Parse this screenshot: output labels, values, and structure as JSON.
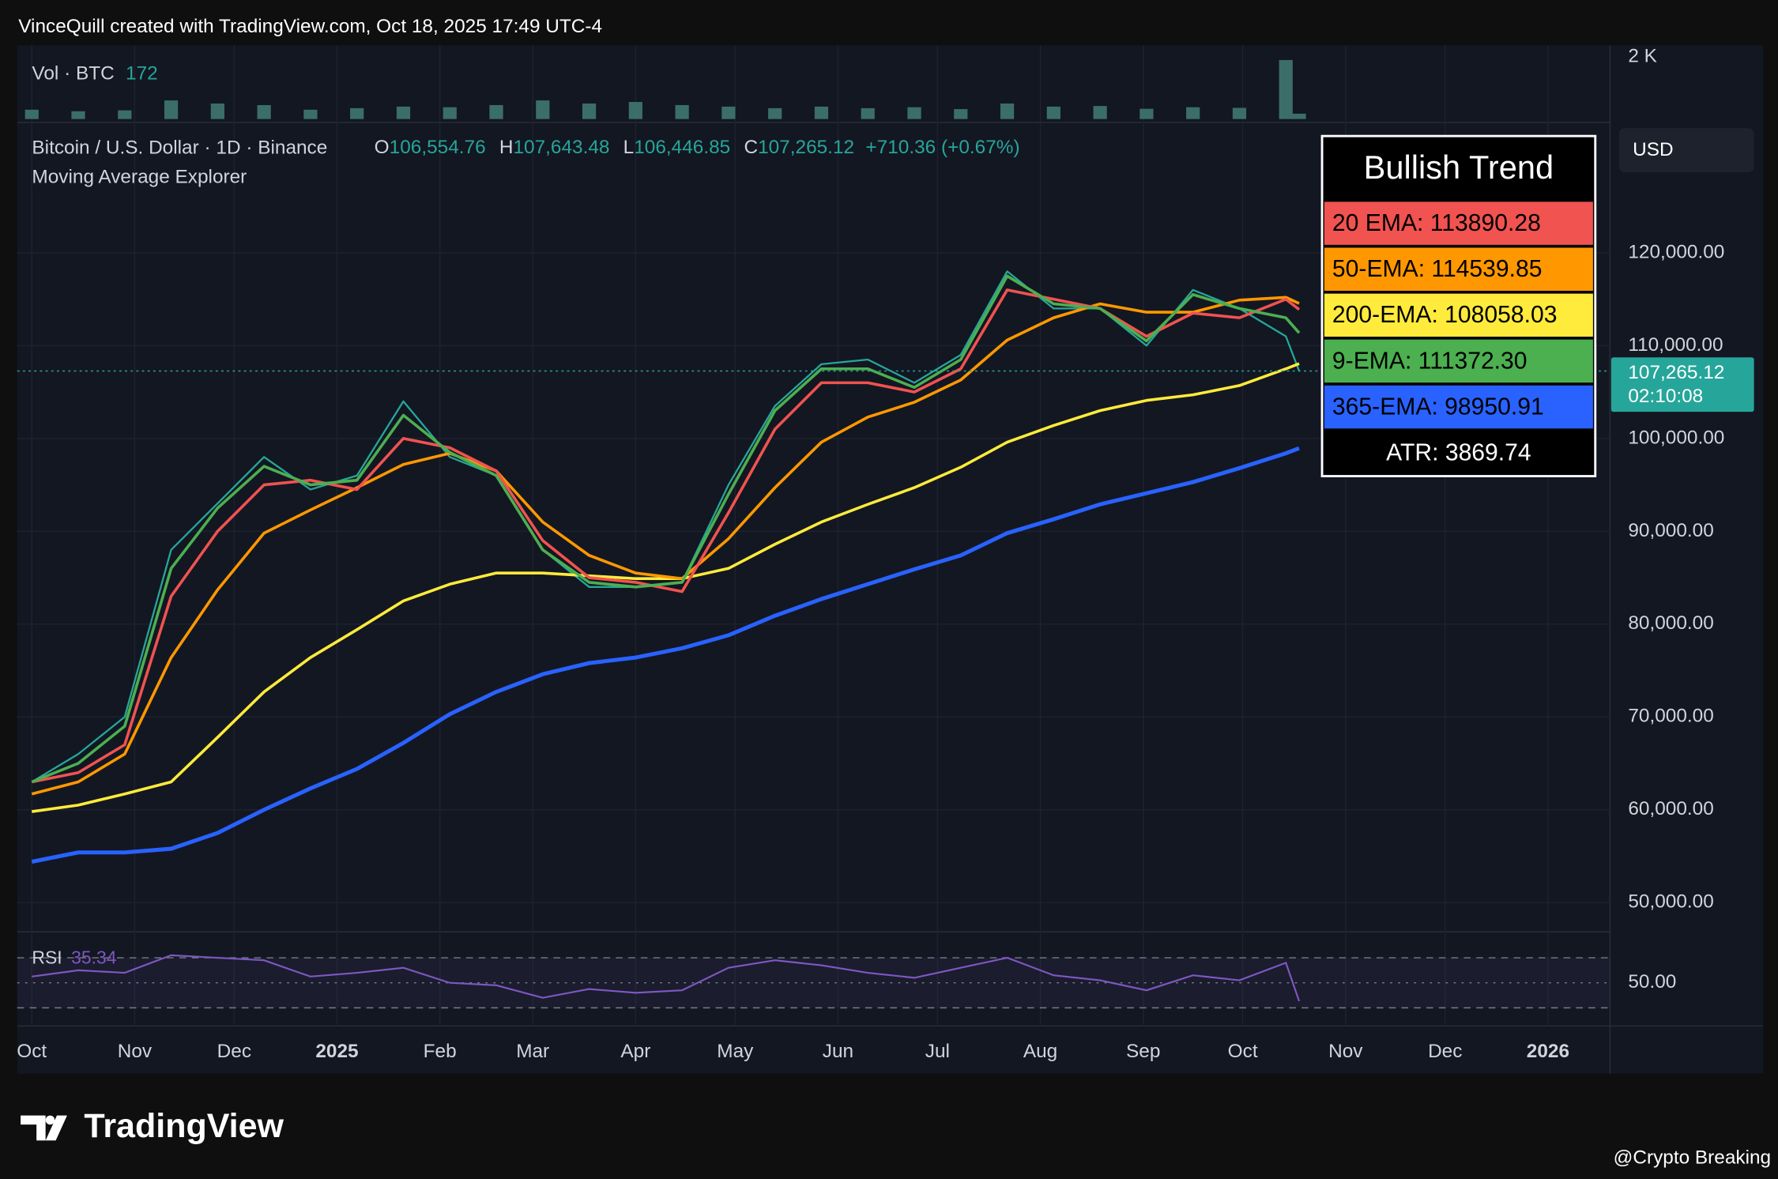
{
  "header": {
    "text": "VinceQuill created with TradingView.com, Oct 18, 2025 17:49 UTC-4"
  },
  "chart_data": {
    "type": "line",
    "title": "Bitcoin / U.S. Dollar · 1D · Binance",
    "ohlc": [
      {
        "key": "O",
        "value": "106,554.76"
      },
      {
        "key": "H",
        "value": "107,643.48"
      },
      {
        "key": "L",
        "value": "106,446.85"
      },
      {
        "key": "C",
        "value": "107,265.12"
      }
    ],
    "change": "+710.36 (+0.67%)",
    "indicator": "Moving Average Explorer",
    "currency": "USD",
    "grid": true,
    "x": [
      0,
      14,
      28,
      42,
      56,
      70,
      84,
      98,
      112,
      126,
      140,
      154,
      168,
      182,
      196,
      210,
      224,
      238,
      252,
      266,
      280,
      294,
      308,
      322,
      336,
      350,
      364,
      378,
      382
    ],
    "xlim": [
      -4.4,
      475.7
    ],
    "xticks": [
      {
        "value": 0,
        "label": "Oct"
      },
      {
        "value": 31,
        "label": "Nov"
      },
      {
        "value": 61,
        "label": "Dec"
      },
      {
        "value": 92,
        "label": "2025"
      },
      {
        "value": 123,
        "label": "Feb"
      },
      {
        "value": 151,
        "label": "Mar"
      },
      {
        "value": 182,
        "label": "Apr"
      },
      {
        "value": 212,
        "label": "May"
      },
      {
        "value": 243,
        "label": "Jun"
      },
      {
        "value": 273,
        "label": "Jul"
      },
      {
        "value": 304,
        "label": "Aug"
      },
      {
        "value": 335,
        "label": "Sep"
      },
      {
        "value": 365,
        "label": "Oct"
      },
      {
        "value": 396,
        "label": "Nov"
      },
      {
        "value": 426,
        "label": "Dec"
      },
      {
        "value": 457,
        "label": "2026"
      }
    ],
    "ylim": [
      47700,
      133800
    ],
    "yticks": [
      {
        "value": 50000,
        "label": "50,000.00"
      },
      {
        "value": 60000,
        "label": "60,000.00"
      },
      {
        "value": 70000,
        "label": "70,000.00"
      },
      {
        "value": 80000,
        "label": "80,000.00"
      },
      {
        "value": 90000,
        "label": "90,000.00"
      },
      {
        "value": 100000,
        "label": "100,000.00"
      },
      {
        "value": 110000,
        "label": "110,000.00"
      },
      {
        "value": 120000,
        "label": "120,000.00"
      }
    ],
    "last_price": {
      "value": 107265.12,
      "label": "107,265.12"
    },
    "countdown": "02:10:08",
    "series": [
      {
        "color": "#26a69a",
        "values": [
          63000,
          66000,
          70000,
          88000,
          93000,
          98000,
          94500,
          96000,
          104000,
          98000,
          96000,
          88000,
          84000,
          84000,
          84500,
          95000,
          103500,
          108000,
          108500,
          106000,
          109000,
          118000,
          114000,
          114000,
          110000,
          116000,
          114000,
          111000,
          107265.12
        ]
      },
      {
        "color": "#2962ff",
        "values": [
          54400,
          55400,
          55400,
          55800,
          57500,
          60000,
          62300,
          64400,
          67200,
          70300,
          72700,
          74600,
          75800,
          76400,
          77400,
          78800,
          80900,
          82700,
          84300,
          85900,
          87400,
          89800,
          91300,
          92900,
          94100,
          95300,
          96800,
          98400,
          98950.91
        ]
      },
      {
        "color": "#ffeb3b",
        "values": [
          59800,
          60500,
          61700,
          63000,
          67800,
          72700,
          76400,
          79400,
          82500,
          84300,
          85500,
          85500,
          85200,
          84900,
          84900,
          86000,
          88600,
          91000,
          92900,
          94700,
          96900,
          99600,
          101400,
          103000,
          104100,
          104700,
          105700,
          107500,
          108058.03
        ]
      },
      {
        "color": "#ff9800",
        "values": [
          61700,
          63000,
          66000,
          76400,
          83700,
          89800,
          92300,
          94700,
          97200,
          98400,
          96500,
          91000,
          87400,
          85500,
          84900,
          89200,
          94700,
          99600,
          102300,
          103900,
          106300,
          110600,
          113000,
          114500,
          113600,
          113600,
          114900,
          115200,
          114539.85
        ]
      },
      {
        "color": "#f05350",
        "values": [
          63000,
          64000,
          67000,
          83000,
          90000,
          95000,
          95500,
          94500,
          100000,
          99000,
          96500,
          89000,
          85000,
          84500,
          83500,
          92000,
          101000,
          106000,
          106000,
          105000,
          107500,
          116000,
          115000,
          114000,
          111000,
          113500,
          113000,
          115000,
          113890.28
        ]
      },
      {
        "color": "#4caf50",
        "values": [
          63000,
          65000,
          69000,
          86000,
          92500,
          97000,
          95000,
          95500,
          102500,
          98500,
          96000,
          88000,
          84500,
          84000,
          84500,
          94000,
          103000,
          107500,
          107500,
          105500,
          108500,
          117500,
          114500,
          114000,
          110500,
          115500,
          114000,
          113000,
          111372.3
        ]
      }
    ]
  },
  "volume": {
    "label": "Vol · BTC",
    "last": "172",
    "color": "#3b6e68",
    "ylim": [
      0,
      2300
    ],
    "yticks": [
      {
        "value": 2000,
        "label": "2 K"
      }
    ],
    "values": [
      300,
      250,
      280,
      600,
      500,
      450,
      300,
      350,
      400,
      380,
      450,
      600,
      500,
      550,
      450,
      400,
      350,
      400,
      350,
      380,
      320,
      500,
      400,
      420,
      330,
      380,
      360,
      1900,
      172
    ]
  },
  "rsi": {
    "label": "RSI",
    "last": "35.34",
    "color": "#7e57c2",
    "ylim": [
      15.5,
      88
    ],
    "yticks": [
      {
        "value": 50,
        "label": "50.00"
      }
    ],
    "bands": [
      30,
      70
    ],
    "values": [
      55,
      60,
      58,
      72,
      70,
      68,
      55,
      58,
      62,
      50,
      48,
      38,
      45,
      42,
      44,
      62,
      68,
      64,
      58,
      54,
      62,
      70,
      56,
      52,
      44,
      56,
      52,
      66,
      35.34
    ]
  },
  "table": {
    "title": "Bullish Trend",
    "rows": [
      {
        "text": "20 EMA: 113890.28",
        "bg": "#f05350",
        "fg": "#000000"
      },
      {
        "text": "50-EMA: 114539.85",
        "bg": "#ff9800",
        "fg": "#000000"
      },
      {
        "text": "200-EMA: 108058.03",
        "bg": "#ffeb3b",
        "fg": "#000000"
      },
      {
        "text": "9-EMA: 111372.30",
        "bg": "#4caf50",
        "fg": "#000000"
      },
      {
        "text": "365-EMA: 98950.91",
        "bg": "#2962ff",
        "fg": "#000000"
      },
      {
        "text": "ATR: 3869.74",
        "bg": "#000000",
        "fg": "#ffffff"
      }
    ]
  },
  "footer": {
    "brand": "TradingView",
    "credit": "@Crypto Breaking"
  }
}
